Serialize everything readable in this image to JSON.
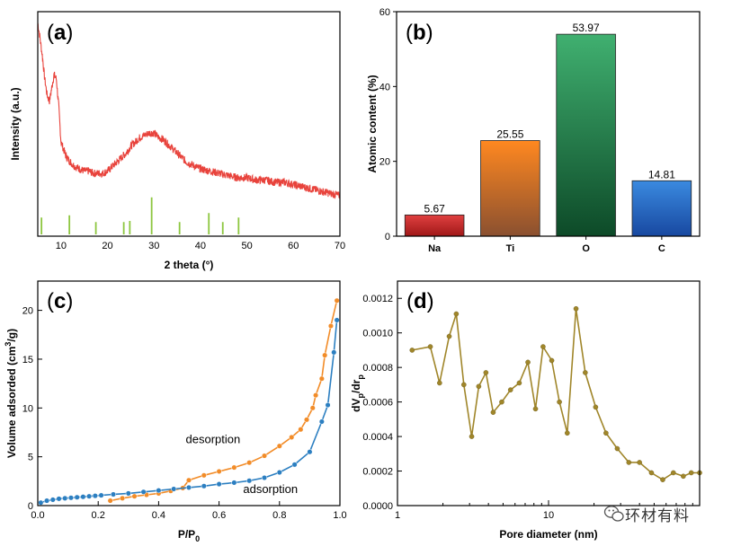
{
  "watermark": {
    "text": "环材有料",
    "icon": "wechat-icon"
  },
  "chart_data": [
    {
      "id": "a",
      "type": "line",
      "panel_label": "a",
      "xlabel": "2 theta (°)",
      "ylabel": "Intensity (a.u.)",
      "xlim": [
        5,
        70
      ],
      "xticks": [
        10,
        20,
        30,
        40,
        50,
        60,
        70
      ],
      "color": "#e8433c",
      "ref_color": "#8dc63f",
      "series": [
        {
          "x": [
            5,
            5.5,
            6,
            6.5,
            7,
            7.5,
            8,
            8.5,
            9,
            9.5,
            10,
            11,
            12,
            13,
            14,
            15,
            16,
            17,
            18,
            19,
            20,
            21,
            22,
            23,
            24,
            25,
            26,
            27,
            28,
            29,
            30,
            31,
            32,
            33,
            34,
            35,
            36,
            37,
            38,
            39,
            40,
            42,
            44,
            46,
            48,
            50,
            52,
            54,
            56,
            58,
            60,
            62,
            64,
            66,
            68,
            70
          ],
          "y": [
            0.95,
            0.88,
            0.8,
            0.7,
            0.63,
            0.6,
            0.66,
            0.72,
            0.7,
            0.58,
            0.42,
            0.36,
            0.33,
            0.31,
            0.3,
            0.29,
            0.29,
            0.28,
            0.28,
            0.28,
            0.29,
            0.31,
            0.33,
            0.35,
            0.37,
            0.4,
            0.42,
            0.44,
            0.45,
            0.46,
            0.46,
            0.44,
            0.43,
            0.41,
            0.39,
            0.37,
            0.35,
            0.33,
            0.32,
            0.31,
            0.3,
            0.29,
            0.28,
            0.27,
            0.26,
            0.26,
            0.25,
            0.25,
            0.24,
            0.24,
            0.23,
            0.22,
            0.21,
            0.2,
            0.19,
            0.18
          ]
        }
      ],
      "reference_lines": {
        "x": [
          5.8,
          11.8,
          17.5,
          23.5,
          24.8,
          29.5,
          35.5,
          41.8,
          44.8,
          48.2
        ],
        "h": [
          0.075,
          0.085,
          0.055,
          0.055,
          0.06,
          0.165,
          0.055,
          0.095,
          0.055,
          0.075
        ]
      }
    },
    {
      "id": "b",
      "type": "bar",
      "panel_label": "b",
      "categories": [
        "Na",
        "Ti",
        "O",
        "C"
      ],
      "values": [
        5.67,
        25.55,
        53.97,
        14.81
      ],
      "value_labels": [
        "5.67",
        "25.55",
        "53.97",
        "14.81"
      ],
      "colors": [
        [
          "#e04040",
          "#a01818"
        ],
        [
          "#ff8820",
          "#8a5030"
        ],
        [
          "#40b070",
          "#0d4a28"
        ],
        [
          "#3a8ae0",
          "#1848a0"
        ]
      ],
      "ylabel": "Atomic content (%)",
      "ylim": [
        0,
        60
      ],
      "yticks": [
        0,
        20,
        40,
        60
      ]
    },
    {
      "id": "c",
      "type": "line",
      "panel_label": "c",
      "xlabel_main": "P/P",
      "xlabel_sub": "0",
      "ylabel_main": "Volume adsorded (cm",
      "ylabel_sup": "3",
      "ylabel_end": "/g)",
      "xlim": [
        0,
        1.0
      ],
      "ylim": [
        0,
        23
      ],
      "xticks": [
        0.0,
        0.2,
        0.4,
        0.6,
        0.8,
        1.0
      ],
      "xtick_labels": [
        "0.0",
        "0.2",
        "0.4",
        "0.6",
        "0.8",
        "1.0"
      ],
      "yticks": [
        0,
        5,
        10,
        15,
        20
      ],
      "series": [
        {
          "name": "desorption",
          "color": "#f28c28",
          "x": [
            0.24,
            0.28,
            0.32,
            0.36,
            0.4,
            0.44,
            0.48,
            0.5,
            0.55,
            0.6,
            0.65,
            0.7,
            0.75,
            0.8,
            0.84,
            0.87,
            0.89,
            0.91,
            0.92,
            0.94,
            0.95,
            0.97,
            0.99
          ],
          "y": [
            0.5,
            0.75,
            0.95,
            1.1,
            1.25,
            1.5,
            1.8,
            2.6,
            3.1,
            3.5,
            3.9,
            4.4,
            5.1,
            6.1,
            7.0,
            7.8,
            8.8,
            10.0,
            11.3,
            13.0,
            15.4,
            18.4,
            21.0
          ]
        },
        {
          "name": "adsorption",
          "color": "#2c7fc1",
          "x": [
            0.01,
            0.03,
            0.05,
            0.07,
            0.09,
            0.11,
            0.13,
            0.15,
            0.17,
            0.19,
            0.21,
            0.25,
            0.3,
            0.35,
            0.4,
            0.45,
            0.5,
            0.55,
            0.6,
            0.65,
            0.7,
            0.75,
            0.8,
            0.85,
            0.9,
            0.94,
            0.96,
            0.98,
            0.99
          ],
          "y": [
            0.3,
            0.5,
            0.6,
            0.7,
            0.75,
            0.8,
            0.85,
            0.9,
            0.95,
            1.0,
            1.05,
            1.15,
            1.25,
            1.4,
            1.55,
            1.7,
            1.85,
            2.0,
            2.2,
            2.35,
            2.55,
            2.85,
            3.4,
            4.2,
            5.5,
            8.6,
            10.3,
            15.7,
            19.0
          ]
        }
      ],
      "annotations": [
        {
          "text": "desorption",
          "x": 0.58,
          "y": 6.4
        },
        {
          "text": "adsorption",
          "x": 0.77,
          "y": 1.3
        }
      ]
    },
    {
      "id": "d",
      "type": "line",
      "panel_label": "d",
      "xlabel": "Pore diameter (nm)",
      "ylabel_main": "dV",
      "ylabel_sub1": "p",
      "ylabel_mid": "/dr",
      "ylabel_sub2": "p",
      "xscale": "log",
      "xlim": [
        1,
        100
      ],
      "xticks": [
        1,
        10
      ],
      "xtick_labels": [
        "1",
        "10"
      ],
      "ylim": [
        0,
        0.0013
      ],
      "yticks": [
        0,
        0.0002,
        0.0004,
        0.0006,
        0.0008,
        0.001,
        0.0012
      ],
      "ytick_labels": [
        "0.0000",
        "0.0002",
        "0.0004",
        "0.0006",
        "0.0008",
        "0.0010",
        "0.0012"
      ],
      "color": "#a0862a",
      "series": [
        {
          "x": [
            1.25,
            1.65,
            1.9,
            2.2,
            2.45,
            2.75,
            3.1,
            3.45,
            3.85,
            4.3,
            4.9,
            5.6,
            6.4,
            7.3,
            8.2,
            9.2,
            10.5,
            11.8,
            13.3,
            15.2,
            17.5,
            20.5,
            24,
            28.5,
            34,
            40,
            48,
            57,
            67,
            78,
            88,
            100
          ],
          "y": [
            0.0009,
            0.00092,
            0.00071,
            0.00098,
            0.00111,
            0.0007,
            0.0004,
            0.00069,
            0.00077,
            0.00054,
            0.0006,
            0.00067,
            0.00071,
            0.00083,
            0.00056,
            0.00092,
            0.00084,
            0.0006,
            0.00042,
            0.00114,
            0.00077,
            0.00057,
            0.00042,
            0.00033,
            0.00025,
            0.00025,
            0.00019,
            0.00015,
            0.00019,
            0.00017,
            0.00019,
            0.00019
          ]
        }
      ]
    }
  ]
}
